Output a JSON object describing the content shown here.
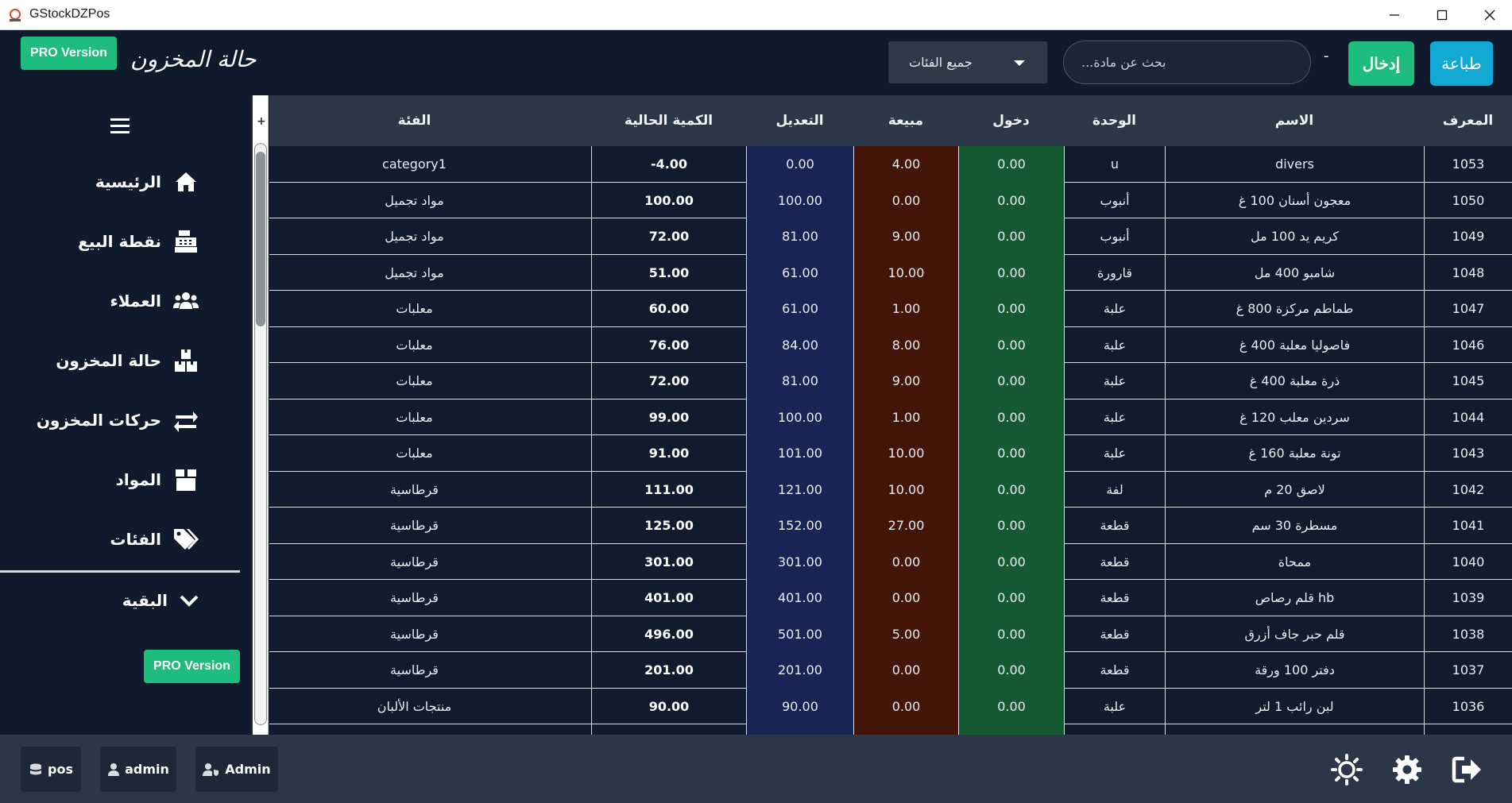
{
  "window": {
    "title": "GStockDZPos"
  },
  "header": {
    "pro_label": "PRO Version",
    "page_title": "حالة المخزون",
    "category_select": {
      "value": "جميع الفئات"
    },
    "search": {
      "placeholder": "بحث عن مادة..."
    },
    "separator": "-",
    "input_button": "إدخال",
    "print_button": "طباعة"
  },
  "sidebar": {
    "items": [
      {
        "label": "الرئيسية",
        "icon": "home-icon"
      },
      {
        "label": "نقطة البيع",
        "icon": "cash-register-icon"
      },
      {
        "label": "العملاء",
        "icon": "users-icon"
      },
      {
        "label": "حالة المخزون",
        "icon": "boxes-icon"
      },
      {
        "label": "حركات المخزون",
        "icon": "exchange-icon"
      },
      {
        "label": "المواد",
        "icon": "box-icon"
      },
      {
        "label": "الفئات",
        "icon": "tags-icon"
      }
    ],
    "more_label": "البقية",
    "pro_label": "PRO Version"
  },
  "table": {
    "columns": [
      "المعرف",
      "الاسم",
      "الوحدة",
      "دخول",
      "مبيعة",
      "التعديل",
      "الكمية الحالية",
      "الفئة"
    ],
    "column_colors": {
      "adjustment": "#182554",
      "sold": "#431509",
      "entry": "#155a33"
    },
    "rows": [
      {
        "id": "1053",
        "name": "divers",
        "unit": "u",
        "in": "0.00",
        "sold": "4.00",
        "adj": "0.00",
        "qty": "-4.00",
        "cat": "category1"
      },
      {
        "id": "1050",
        "name": "معجون أسنان 100 غ",
        "unit": "أنبوب",
        "in": "0.00",
        "sold": "0.00",
        "adj": "100.00",
        "qty": "100.00",
        "cat": "مواد تجميل"
      },
      {
        "id": "1049",
        "name": "كريم يد 100 مل",
        "unit": "أنبوب",
        "in": "0.00",
        "sold": "9.00",
        "adj": "81.00",
        "qty": "72.00",
        "cat": "مواد تجميل"
      },
      {
        "id": "1048",
        "name": "شامبو 400 مل",
        "unit": "قارورة",
        "in": "0.00",
        "sold": "10.00",
        "adj": "61.00",
        "qty": "51.00",
        "cat": "مواد تجميل"
      },
      {
        "id": "1047",
        "name": "طماطم مركزة 800 غ",
        "unit": "علبة",
        "in": "0.00",
        "sold": "1.00",
        "adj": "61.00",
        "qty": "60.00",
        "cat": "معلبات"
      },
      {
        "id": "1046",
        "name": "فاصوليا معلبة 400 غ",
        "unit": "علبة",
        "in": "0.00",
        "sold": "8.00",
        "adj": "84.00",
        "qty": "76.00",
        "cat": "معلبات"
      },
      {
        "id": "1045",
        "name": "ذرة معلبة 400 غ",
        "unit": "علبة",
        "in": "0.00",
        "sold": "9.00",
        "adj": "81.00",
        "qty": "72.00",
        "cat": "معلبات"
      },
      {
        "id": "1044",
        "name": "سردين معلب 120 غ",
        "unit": "علبة",
        "in": "0.00",
        "sold": "1.00",
        "adj": "100.00",
        "qty": "99.00",
        "cat": "معلبات"
      },
      {
        "id": "1043",
        "name": "تونة معلبة 160 غ",
        "unit": "علبة",
        "in": "0.00",
        "sold": "10.00",
        "adj": "101.00",
        "qty": "91.00",
        "cat": "معلبات"
      },
      {
        "id": "1042",
        "name": "لاصق 20 م",
        "unit": "لفة",
        "in": "0.00",
        "sold": "10.00",
        "adj": "121.00",
        "qty": "111.00",
        "cat": "قرطاسية"
      },
      {
        "id": "1041",
        "name": "مسطرة 30 سم",
        "unit": "قطعة",
        "in": "0.00",
        "sold": "27.00",
        "adj": "152.00",
        "qty": "125.00",
        "cat": "قرطاسية"
      },
      {
        "id": "1040",
        "name": "ممحاة",
        "unit": "قطعة",
        "in": "0.00",
        "sold": "0.00",
        "adj": "301.00",
        "qty": "301.00",
        "cat": "قرطاسية"
      },
      {
        "id": "1039",
        "name": "قلم رصاص hb",
        "unit": "قطعة",
        "in": "0.00",
        "sold": "0.00",
        "adj": "401.00",
        "qty": "401.00",
        "cat": "قرطاسية"
      },
      {
        "id": "1038",
        "name": "قلم حبر جاف أزرق",
        "unit": "قطعة",
        "in": "0.00",
        "sold": "5.00",
        "adj": "501.00",
        "qty": "496.00",
        "cat": "قرطاسية"
      },
      {
        "id": "1037",
        "name": "دفتر 100 ورقة",
        "unit": "قطعة",
        "in": "0.00",
        "sold": "0.00",
        "adj": "201.00",
        "qty": "201.00",
        "cat": "قرطاسية"
      },
      {
        "id": "1036",
        "name": "لبن رائب 1 لتر",
        "unit": "علبة",
        "in": "0.00",
        "sold": "0.00",
        "adj": "90.00",
        "qty": "90.00",
        "cat": "منتجات الألبان"
      }
    ]
  },
  "footer": {
    "chips": [
      {
        "label": "pos",
        "icon": "database-icon"
      },
      {
        "label": "admin",
        "icon": "user-icon"
      },
      {
        "label": "Admin",
        "icon": "user-shield-icon"
      }
    ],
    "icons": [
      "brightness-icon",
      "settings-gear-icon",
      "logout-icon"
    ]
  }
}
